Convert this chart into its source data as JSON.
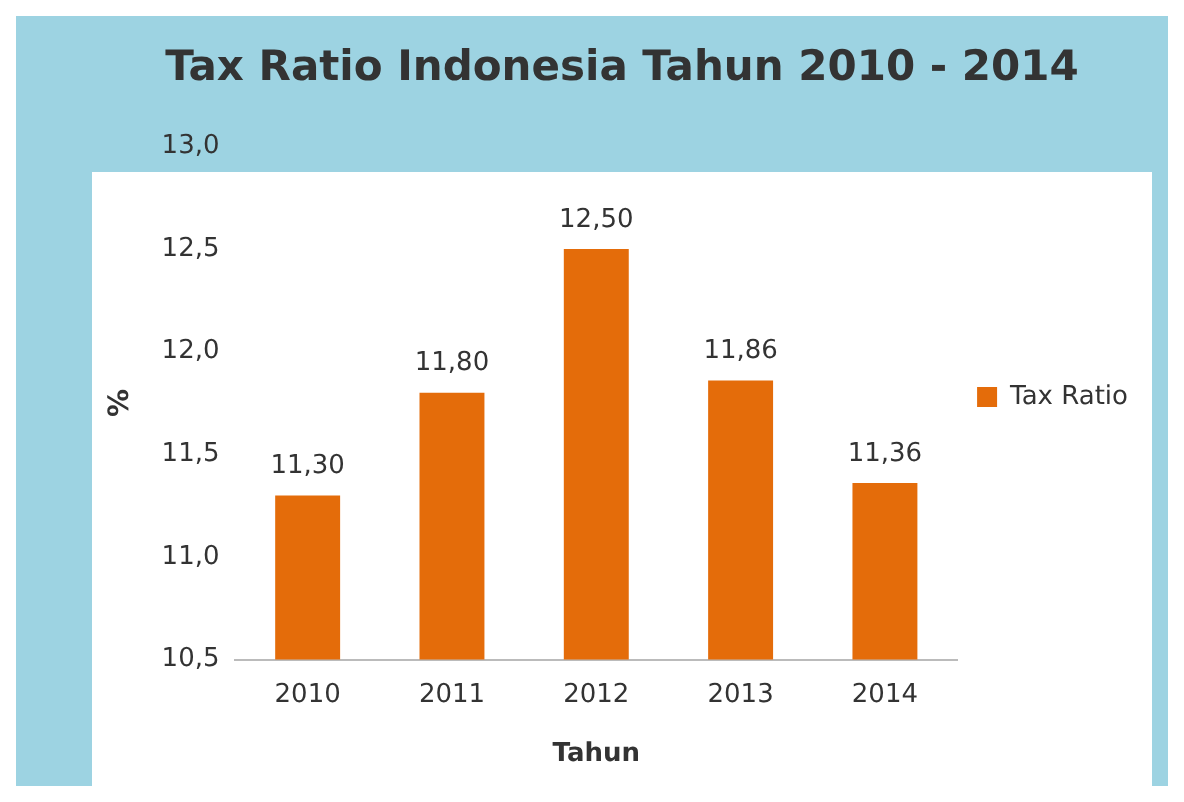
{
  "chart_data": {
    "type": "bar",
    "title": "Tax Ratio Indonesia Tahun 2010 - 2014",
    "xlabel": "Tahun",
    "ylabel": "%",
    "categories": [
      "2010",
      "2011",
      "2012",
      "2013",
      "2014"
    ],
    "series": [
      {
        "name": "Tax Ratio",
        "color": "#e46c0a",
        "values": [
          11.3,
          11.8,
          12.5,
          11.86,
          11.36
        ],
        "value_labels": [
          "11,30",
          "11,80",
          "12,50",
          "11,86",
          "11,36"
        ]
      }
    ],
    "ylim": [
      10.5,
      13.0
    ],
    "yticks": [
      {
        "value": 10.5,
        "label": "10,5"
      },
      {
        "value": 11.0,
        "label": "11,0"
      },
      {
        "value": 11.5,
        "label": "11,5"
      },
      {
        "value": 12.0,
        "label": "12,0"
      },
      {
        "value": 12.5,
        "label": "12,5"
      },
      {
        "value": 13.0,
        "label": "13,0"
      }
    ],
    "grid": false,
    "legend": "right"
  }
}
